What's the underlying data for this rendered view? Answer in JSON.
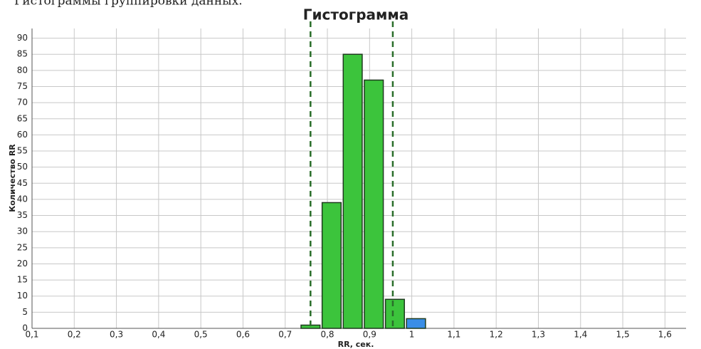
{
  "caption": "Гистограммы группировки данных.",
  "chart_data": {
    "type": "histogram",
    "title": "Гистограмма",
    "xlabel": "RR, сек.",
    "ylabel": "Количество RR",
    "bins": [
      0.735,
      0.785,
      0.835,
      0.885,
      0.935,
      0.985,
      1.035
    ],
    "values": [
      1,
      39,
      85,
      77,
      9,
      3
    ],
    "colors": [
      "#3cc43c",
      "#3cc43c",
      "#3cc43c",
      "#3cc43c",
      "#3cc43c",
      "#3a8ee6"
    ],
    "vlines": [
      0.76,
      0.955
    ],
    "vline_color": "#2a6e2a",
    "xlim": [
      0.1,
      1.65
    ],
    "xticks": [
      {
        "value": 0.1,
        "label": "0,1"
      },
      {
        "value": 0.2,
        "label": "0,2"
      },
      {
        "value": 0.3,
        "label": "0,3"
      },
      {
        "value": 0.4,
        "label": "0,4"
      },
      {
        "value": 0.5,
        "label": "0,5"
      },
      {
        "value": 0.6,
        "label": "0,6"
      },
      {
        "value": 0.7,
        "label": "0,7"
      },
      {
        "value": 0.8,
        "label": "0,8"
      },
      {
        "value": 0.9,
        "label": "0,9"
      },
      1,
      {
        "value": 1.1,
        "label": "1,1"
      },
      {
        "value": 1.2,
        "label": "1,2"
      },
      {
        "value": 1.3,
        "label": "1,3"
      },
      {
        "value": 1.4,
        "label": "1,4"
      },
      {
        "value": 1.5,
        "label": "1,5"
      },
      {
        "value": 1.6,
        "label": "1,6"
      }
    ],
    "ylim": [
      0,
      93
    ],
    "yticks": [
      0,
      5,
      10,
      15,
      20,
      25,
      30,
      35,
      40,
      45,
      50,
      55,
      60,
      65,
      70,
      75,
      80,
      85,
      90
    ],
    "grid": true
  }
}
